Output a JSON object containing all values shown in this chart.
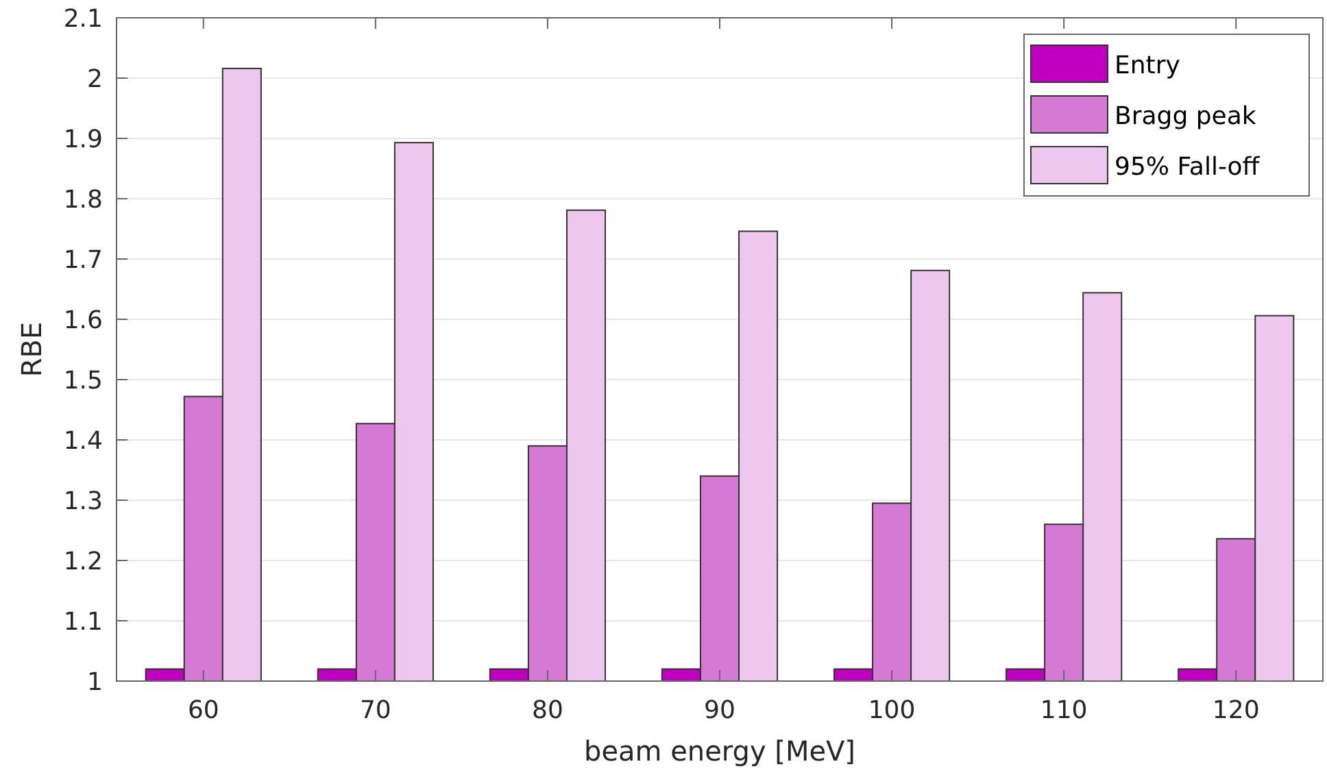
{
  "chart_data": {
    "type": "bar",
    "xlabel": "beam energy [MeV]",
    "ylabel": "RBE",
    "categories": [
      "60",
      "70",
      "80",
      "90",
      "100",
      "110",
      "120"
    ],
    "series": [
      {
        "name": "Entry",
        "color": "#c000c0",
        "values": [
          1.02,
          1.02,
          1.02,
          1.02,
          1.02,
          1.02,
          1.02
        ]
      },
      {
        "name": "Bragg peak",
        "color": "#d479d4",
        "values": [
          1.472,
          1.427,
          1.39,
          1.34,
          1.295,
          1.26,
          1.236
        ]
      },
      {
        "name": "95% Fall-off",
        "color": "#edc7ed",
        "values": [
          2.016,
          1.893,
          1.781,
          1.746,
          1.681,
          1.644,
          1.606
        ]
      }
    ],
    "ylim": [
      1,
      2.1
    ],
    "yticks": [
      1,
      1.1,
      1.2,
      1.3,
      1.4,
      1.5,
      1.6,
      1.7,
      1.8,
      1.9,
      2,
      2.1
    ],
    "grid": "y",
    "legend": "top right"
  }
}
